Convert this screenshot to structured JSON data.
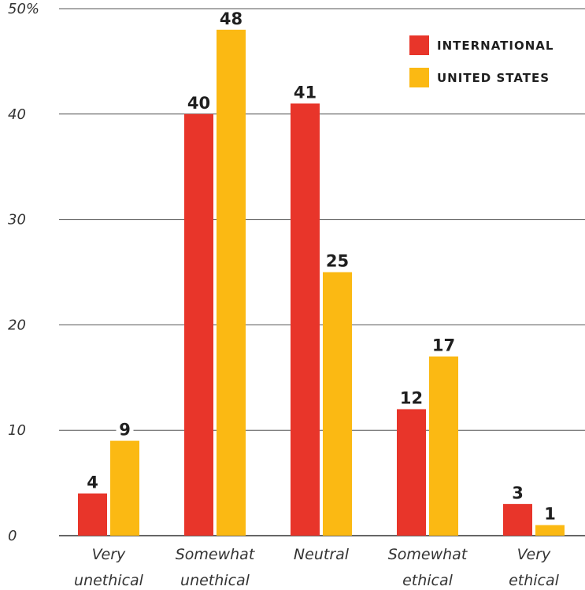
{
  "chart_data": {
    "type": "bar",
    "categories": [
      [
        "Very",
        "unethical"
      ],
      [
        "Somewhat",
        "unethical"
      ],
      [
        "Neutral"
      ],
      [
        "Somewhat",
        "ethical"
      ],
      [
        "Very",
        "ethical"
      ]
    ],
    "series": [
      {
        "name": "INTERNATIONAL",
        "color": "#e8352a",
        "values": [
          4,
          40,
          41,
          12,
          3
        ]
      },
      {
        "name": "UNITED STATES",
        "color": "#fbb913",
        "values": [
          9,
          48,
          25,
          17,
          1
        ]
      }
    ],
    "ylim": [
      0,
      50
    ],
    "yticks": [
      0,
      10,
      20,
      30,
      40,
      50
    ],
    "ytick_labels": [
      "0",
      "10",
      "20",
      "30",
      "40",
      "50%"
    ],
    "legend_position": "top-right",
    "grid": true
  }
}
